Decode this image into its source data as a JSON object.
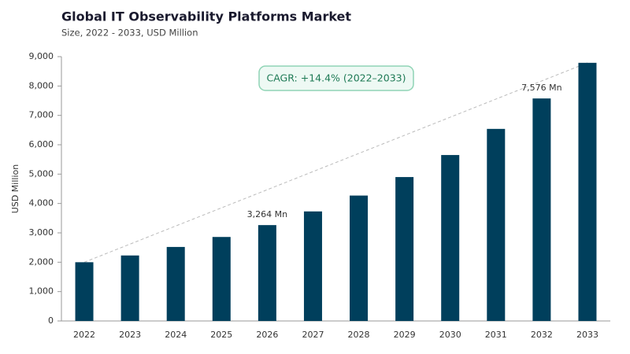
{
  "chart_data": {
    "type": "bar",
    "title": "Global IT Observability Platforms Market",
    "subtitle": "Size, 2022 - 2033, USD Million",
    "y_label": "USD Million",
    "annotation": "CAGR: +14.4% (2022–2033)",
    "categories": [
      "2022",
      "2023",
      "2024",
      "2025",
      "2026",
      "2027",
      "2028",
      "2029",
      "2030",
      "2031",
      "2032",
      "2033"
    ],
    "values": [
      2000,
      2230,
      2520,
      2860,
      3264,
      3730,
      4270,
      4900,
      5650,
      6540,
      7576,
      8790
    ],
    "value_labels": [
      null,
      null,
      null,
      null,
      "3,264 Mn",
      null,
      null,
      null,
      null,
      null,
      "7,576 Mn",
      null
    ],
    "color": "#003f5c",
    "ylim": [
      0,
      9000
    ],
    "yticks": [
      0,
      {
        "value": 1000,
        "label": "1,000"
      },
      {
        "value": 2000,
        "label": "2,000"
      },
      {
        "value": 3000,
        "label": "3,000"
      },
      {
        "value": 4000,
        "label": "4,000"
      },
      {
        "value": 5000,
        "label": "5,000"
      },
      {
        "value": 6000,
        "label": "6,000"
      },
      {
        "value": 7000,
        "label": "7,000"
      },
      {
        "value": 8000,
        "label": "8,000"
      },
      {
        "value": 9000,
        "label": "9,000"
      }
    ],
    "grid": false
  }
}
